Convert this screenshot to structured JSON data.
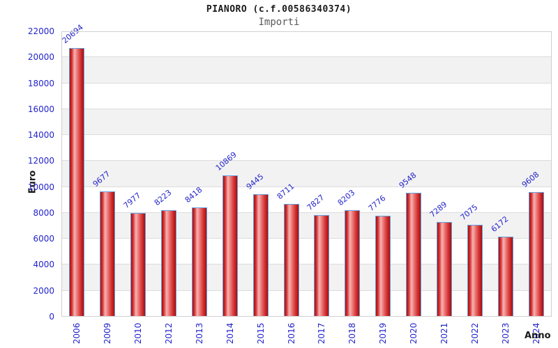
{
  "header": {
    "title": "PIANORO (c.f.00586340374)",
    "subtitle": "Importi"
  },
  "chart_data": {
    "type": "bar",
    "title": "PIANORO (c.f.00586340374)",
    "subtitle": "Importi",
    "xlabel": "Anno",
    "ylabel": "Euro",
    "categories": [
      "2006",
      "2009",
      "2010",
      "2012",
      "2013",
      "2014",
      "2015",
      "2016",
      "2017",
      "2018",
      "2019",
      "2020",
      "2021",
      "2022",
      "2023",
      "2024"
    ],
    "values": [
      20694,
      9677,
      7977,
      8223,
      8418,
      10869,
      9445,
      8711,
      7827,
      8203,
      7776,
      9548,
      7289,
      7075,
      6172,
      9608
    ],
    "ylim": [
      0,
      22000
    ],
    "ytick_step": 2000,
    "ytick_labels": [
      "0",
      "2000",
      "4000",
      "6000",
      "8000",
      "10000",
      "12000",
      "14000",
      "16000",
      "18000",
      "20000",
      "22000"
    ],
    "grid": "horizontal-bands",
    "legend_position": "none",
    "colors": {
      "bar_gradient": [
        "#a90e0e",
        "#d43434",
        "#f7b3b3",
        "#f29090",
        "#e56262",
        "#d13232",
        "#a90e0e"
      ],
      "bar_border": "#64a0e0",
      "label_blue": "#2323cb",
      "band_gray": "#f2f2f2",
      "band_white": "#ffffff",
      "gridline": "#dcdcdc",
      "plot_border": "#cfcfcf",
      "title_color": "#1a1a1a",
      "subtitle_color": "#5a5a5a",
      "axis_title_color": "#1a1a1a"
    }
  }
}
